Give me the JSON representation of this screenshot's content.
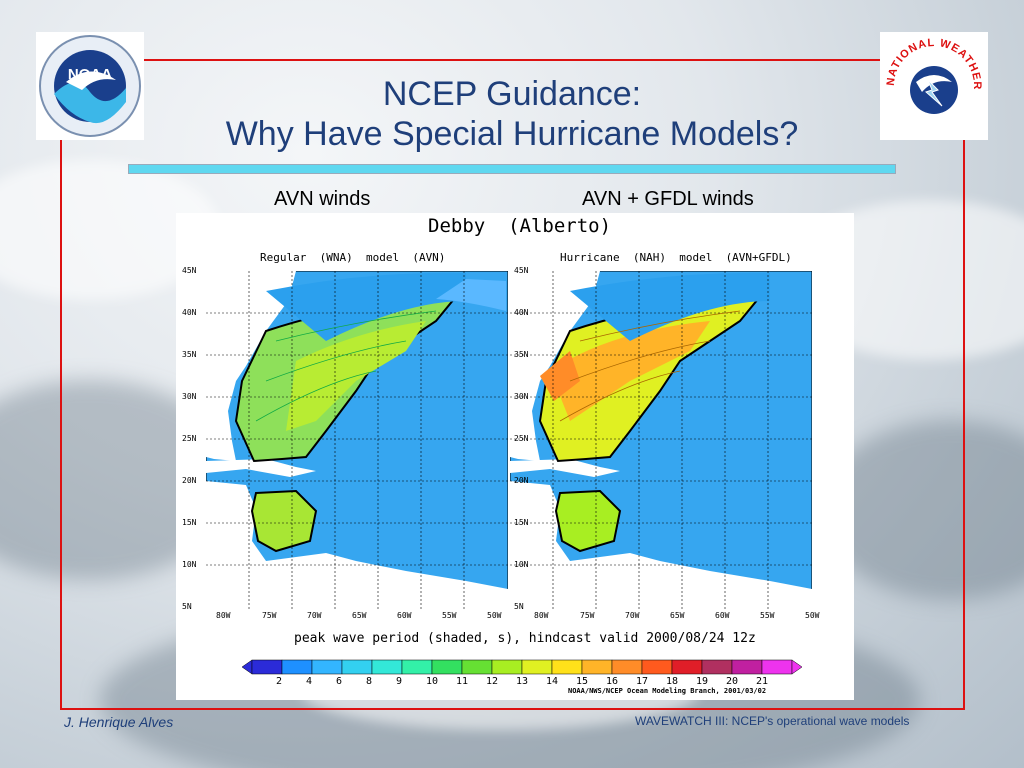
{
  "slide": {
    "title_line1": "NCEP Guidance:",
    "title_line2": "Why Have Special Hurricane Models?",
    "left_caption": "AVN winds",
    "right_caption": "AVN + GFDL winds",
    "author": "J. Henrique Alves",
    "footer_note": "WAVEWATCH III: NCEP's operational wave models"
  },
  "logos": {
    "noaa_text": "NOAA",
    "nws_text": "NATIONAL WEATHER SERVICE"
  },
  "figure": {
    "storm_title": "Debby  (Alberto)",
    "left_panel_title": "Regular  (WNA)  model  (AVN)",
    "right_panel_title": "Hurricane  (NAH)  model  (AVN+GFDL)",
    "lat_labels": [
      "45N",
      "40N",
      "35N",
      "30N",
      "25N",
      "20N",
      "15N",
      "10N",
      "5N"
    ],
    "lon_labels": [
      "80W",
      "75W",
      "70W",
      "65W",
      "60W",
      "55W",
      "50W"
    ],
    "caption": "peak wave period (shaded, s), hindcast valid 2000/08/24 12z",
    "credit": "NOAA/NWS/NCEP Ocean Modeling Branch, 2001/03/02",
    "colorbar_labels": [
      "2",
      "4",
      "6",
      "8",
      "9",
      "10",
      "11",
      "12",
      "13",
      "14",
      "15",
      "16",
      "17",
      "18",
      "19",
      "20",
      "21"
    ],
    "colorbar_colors": [
      "#2b2bd8",
      "#1e90ff",
      "#33b5ff",
      "#33d0f0",
      "#33e8d8",
      "#33f0a8",
      "#33e060",
      "#66e033",
      "#a8ee22",
      "#e0f022",
      "#ffe11a",
      "#ffb428",
      "#ff8c28",
      "#ff5a1e",
      "#e01e28",
      "#b03060",
      "#c020a0",
      "#ee33ee"
    ]
  }
}
